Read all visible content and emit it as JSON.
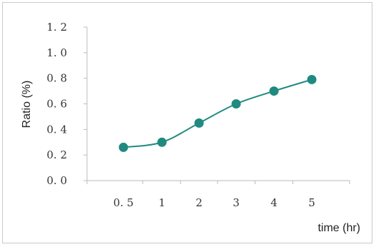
{
  "chart_data": {
    "type": "line",
    "title": "",
    "xlabel": "time (hr)",
    "ylabel": "Ratio (%)",
    "categories": [
      "0. 5",
      "1",
      "2",
      "3",
      "4",
      "5"
    ],
    "series": [
      {
        "values": [
          0.26,
          0.3,
          0.45,
          0.6,
          0.7,
          0.79
        ]
      }
    ],
    "yticks": [
      "0. 0",
      "0. 2",
      "0. 4",
      "0. 6",
      "0. 8",
      "1. 0",
      "1. 2"
    ],
    "ylim": [
      0,
      1.2
    ],
    "grid": false,
    "legend": "none",
    "colors": {
      "line": "#1f8a80",
      "marker": "#1f8a80",
      "axis": "#bbbbbb"
    }
  }
}
